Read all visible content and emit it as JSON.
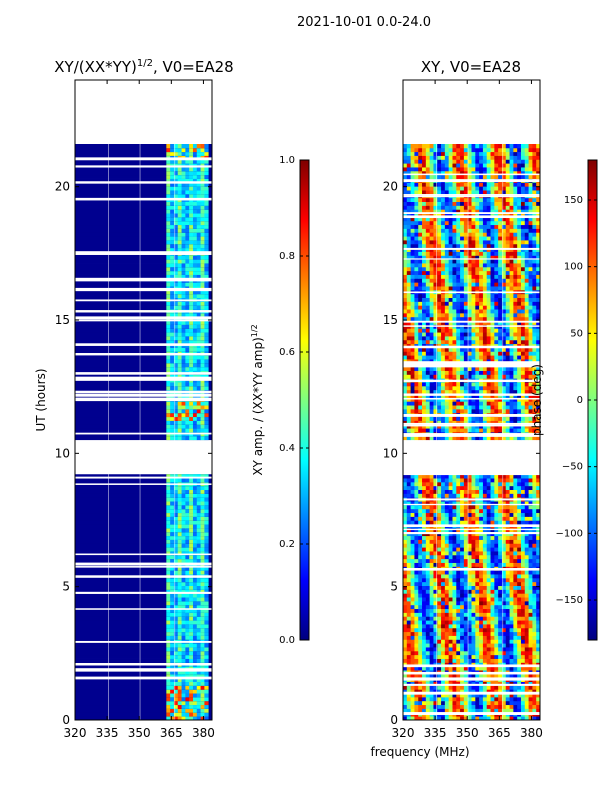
{
  "figure_title": "2021-10-01 0.0-24.0",
  "shared": {
    "ylabel": "UT (hours)",
    "xlabel": "frequency (MHz)"
  },
  "chart_data": [
    {
      "type": "heatmap",
      "title_main": "XY/(XX*YY)",
      "title_exp": "1/2",
      "title_rest": ", V0=EA28",
      "xlabel": "frequency (MHz)",
      "ylabel": "UT (hours)",
      "xlim": [
        320,
        384
      ],
      "ylim": [
        0,
        24
      ],
      "x_ticks": [
        320,
        335,
        350,
        365,
        380
      ],
      "y_ticks": [
        0,
        5,
        10,
        15,
        20
      ],
      "data_time_range": [
        0,
        21.6
      ],
      "data_gap_hours": [
        10.5,
        9.3
      ],
      "colormap": "jet",
      "colorbar": {
        "label_main": "XY amp. / (XX*YY amp)",
        "label_exp": "1/2",
        "range": [
          0.0,
          1.0
        ],
        "ticks": [
          "0.0",
          "0.2",
          "0.4",
          "0.6",
          "0.8",
          "1.0"
        ]
      }
    },
    {
      "type": "heatmap",
      "title_main": "XY, V0=EA28",
      "xlabel": "frequency (MHz)",
      "ylabel": "",
      "xlim": [
        320,
        384
      ],
      "ylim": [
        0,
        24
      ],
      "x_ticks": [
        320,
        335,
        350,
        365,
        380
      ],
      "y_ticks": [
        0,
        5,
        10,
        15,
        20
      ],
      "data_time_range": [
        0,
        21.6
      ],
      "data_gap_hours": [
        10.5,
        9.3
      ],
      "colormap": "jet",
      "colorbar": {
        "label_main": "phase (deg)",
        "range": [
          -180,
          180
        ],
        "ticks": [
          "−150",
          "−100",
          "−50",
          "0",
          "50",
          "100",
          "150"
        ]
      }
    }
  ]
}
